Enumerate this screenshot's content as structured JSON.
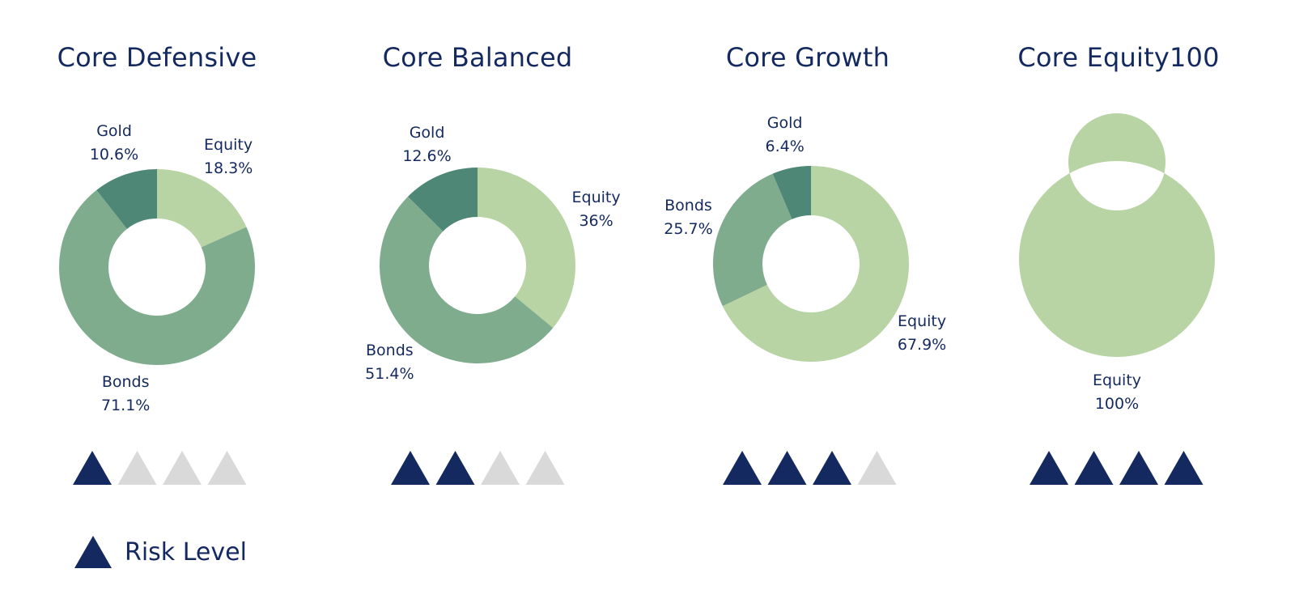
{
  "colors": {
    "equity": "#b8d3a4",
    "bonds": "#80ac8e",
    "gold": "#4f8777",
    "risk_on": "#13295f",
    "risk_off": "#d9d9d9",
    "text": "#13295f"
  },
  "chart_data": [
    {
      "type": "pie",
      "title": "Core Defensive",
      "slices": [
        {
          "name": "Equity",
          "value": 18.3,
          "label": "18.3%"
        },
        {
          "name": "Bonds",
          "value": 71.1,
          "label": "71.1%"
        },
        {
          "name": "Gold",
          "value": 10.6,
          "label": "10.6%"
        }
      ],
      "risk_level": 1,
      "risk_max": 4
    },
    {
      "type": "pie",
      "title": "Core Balanced",
      "slices": [
        {
          "name": "Equity",
          "value": 36,
          "label": "36%"
        },
        {
          "name": "Bonds",
          "value": 51.4,
          "label": "51.4%"
        },
        {
          "name": "Gold",
          "value": 12.6,
          "label": "12.6%"
        }
      ],
      "risk_level": 2,
      "risk_max": 4
    },
    {
      "type": "pie",
      "title": "Core Growth",
      "slices": [
        {
          "name": "Equity",
          "value": 67.9,
          "label": "67.9%"
        },
        {
          "name": "Bonds",
          "value": 25.7,
          "label": "25.7%"
        },
        {
          "name": "Gold",
          "value": 6.4,
          "label": "6.4%"
        }
      ],
      "risk_level": 3,
      "risk_max": 4
    },
    {
      "type": "pie",
      "title": "Core Equity100",
      "slices": [
        {
          "name": "Equity",
          "value": 100,
          "label": "100%"
        }
      ],
      "risk_level": 4,
      "risk_max": 4
    }
  ],
  "legend": {
    "label": "Risk Level",
    "icon": "triangle-icon"
  }
}
